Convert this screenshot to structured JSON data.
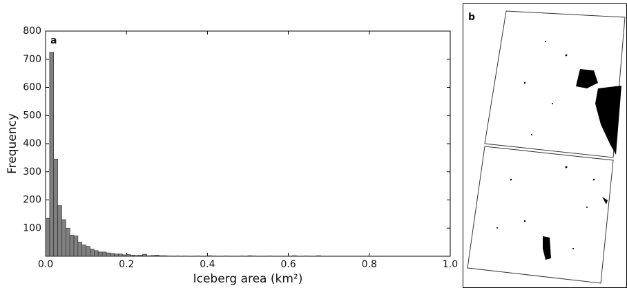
{
  "chart_data": {
    "type": "histogram",
    "panel_label": "a",
    "xlabel": "Iceberg area (km²)",
    "ylabel": "Frequency",
    "bins": [
      0,
      0.01,
      0.02,
      0.03,
      0.04,
      0.05,
      0.06,
      0.07,
      0.08,
      0.09,
      0.1,
      0.11,
      0.12,
      0.13,
      0.14,
      0.15,
      0.16,
      0.17,
      0.18,
      0.19,
      0.2,
      0.21,
      0.22,
      0.23,
      0.24,
      0.25,
      0.26,
      0.27,
      0.28,
      0.29,
      0.3,
      0.31,
      0.32,
      0.33,
      0.34,
      0.35,
      0.36,
      0.37,
      0.38,
      0.39,
      0.4,
      0.41,
      0.42,
      0.43,
      0.44,
      0.45,
      0.46,
      0.47,
      0.48,
      0.49,
      0.5,
      0.51,
      0.52,
      0.53,
      0.54,
      0.55,
      0.56,
      0.57,
      0.58,
      0.59,
      0.6,
      0.61,
      0.62,
      0.63,
      0.64,
      0.65,
      0.66,
      0.67,
      0.68,
      0.69,
      0.7
    ],
    "values": [
      135,
      725,
      345,
      180,
      130,
      100,
      75,
      72,
      50,
      40,
      35,
      25,
      20,
      15,
      15,
      12,
      10,
      8,
      8,
      5,
      6,
      4,
      3,
      4,
      7,
      2,
      3,
      4,
      2,
      2,
      1,
      0,
      1,
      0,
      1,
      0,
      0,
      1,
      0,
      0,
      2,
      1,
      0,
      0,
      1,
      0,
      0,
      0,
      1,
      0,
      2,
      1,
      0,
      0,
      0,
      1,
      0,
      0,
      0,
      0,
      0,
      2,
      0,
      0,
      1,
      0,
      0,
      2,
      0,
      0
    ],
    "color": "#808080",
    "xlim": [
      0,
      1
    ],
    "ylim": [
      0,
      800
    ],
    "xticks": [
      {
        "value": 0,
        "label": "0.0"
      },
      0.2,
      0.4,
      0.6,
      0.8,
      {
        "value": 1,
        "label": "1.0"
      }
    ],
    "yticks": [
      100,
      200,
      300,
      400,
      500,
      600,
      700,
      800
    ]
  },
  "image_panel": {
    "label": "b"
  }
}
